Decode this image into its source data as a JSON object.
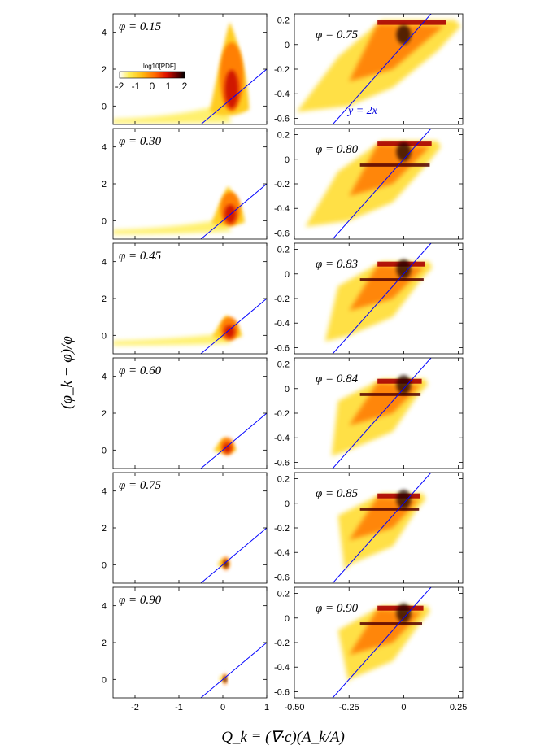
{
  "chart_data": {
    "type": "heatmap",
    "xlabel": "Q_k ≡ (∇·c)(A_k/Ā)",
    "ylabel": "(φ_k − φ)/φ",
    "colorbar": {
      "label": "log10[PDF]",
      "ticks": [
        "-2",
        "-1",
        "0",
        "1",
        "2"
      ],
      "range": [
        -2,
        2
      ],
      "colormap": [
        "#ffffcc",
        "#ffee55",
        "#ffbb11",
        "#ff7700",
        "#ee2200",
        "#aa0000",
        "#550000",
        "#1a0000"
      ]
    },
    "reference_line": {
      "label": "y = 2x",
      "slope": 2,
      "intercept": 0,
      "color": "#0000ff"
    },
    "left_panels": {
      "xlim": [
        -2.5,
        1
      ],
      "ylim": [
        -1,
        5
      ],
      "x_ticks": [
        "-2",
        "-1",
        "0",
        "1"
      ],
      "y_ticks": [
        "0",
        "2",
        "4"
      ],
      "phi_values": [
        "φ = 0.15",
        "φ = 0.30",
        "φ = 0.45",
        "φ = 0.60",
        "φ = 0.75",
        "φ = 0.90"
      ]
    },
    "right_panels": {
      "xlim": [
        -0.5,
        0.27
      ],
      "ylim": [
        -0.65,
        0.25
      ],
      "x_ticks": [
        "-0.50",
        "-0.25",
        "0",
        "0.25"
      ],
      "y_ticks": [
        "0.2",
        "0",
        "-0.2",
        "-0.4",
        "-0.6"
      ],
      "phi_values": [
        "φ = 0.75",
        "φ = 0.80",
        "φ = 0.83",
        "φ = 0.84",
        "φ = 0.85",
        "φ = 0.90"
      ]
    }
  }
}
